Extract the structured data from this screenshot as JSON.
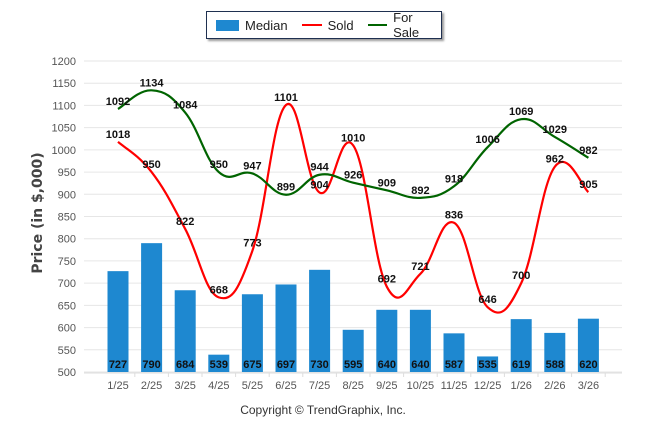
{
  "chart_data": {
    "type": "bar",
    "title": "",
    "xlabel": "",
    "ylabel": "Price (in $,000)",
    "ylim": [
      500,
      1200
    ],
    "yticks": [
      500,
      550,
      600,
      650,
      700,
      750,
      800,
      850,
      900,
      950,
      1000,
      1050,
      1100,
      1150,
      1200
    ],
    "grid": true,
    "legend_position": "top-center",
    "categories": [
      "1/25",
      "2/25",
      "3/25",
      "4/25",
      "5/25",
      "6/25",
      "7/25",
      "8/25",
      "9/25",
      "10/25",
      "11/25",
      "12/25",
      "1/26",
      "2/26",
      "3/26"
    ],
    "series": [
      {
        "name": "Median",
        "type": "bar",
        "color": "#1e88d0",
        "values": [
          727,
          790,
          684,
          539,
          675,
          697,
          730,
          595,
          640,
          640,
          587,
          535,
          619,
          588,
          620
        ]
      },
      {
        "name": "Sold",
        "type": "line",
        "color": "#ff0000",
        "values": [
          1018,
          950,
          822,
          668,
          773,
          1101,
          904,
          1010,
          692,
          721,
          836,
          646,
          700,
          962,
          905
        ]
      },
      {
        "name": "For Sale",
        "type": "line",
        "color": "#006400",
        "values": [
          1092,
          1134,
          1084,
          950,
          947,
          899,
          944,
          926,
          909,
          892,
          918,
          1006,
          1069,
          1029,
          982
        ]
      }
    ]
  },
  "legend": {
    "median": "Median",
    "sold": "Sold",
    "for_sale": "For Sale"
  },
  "footer": {
    "copyright": "Copyright © TrendGraphix, Inc."
  }
}
